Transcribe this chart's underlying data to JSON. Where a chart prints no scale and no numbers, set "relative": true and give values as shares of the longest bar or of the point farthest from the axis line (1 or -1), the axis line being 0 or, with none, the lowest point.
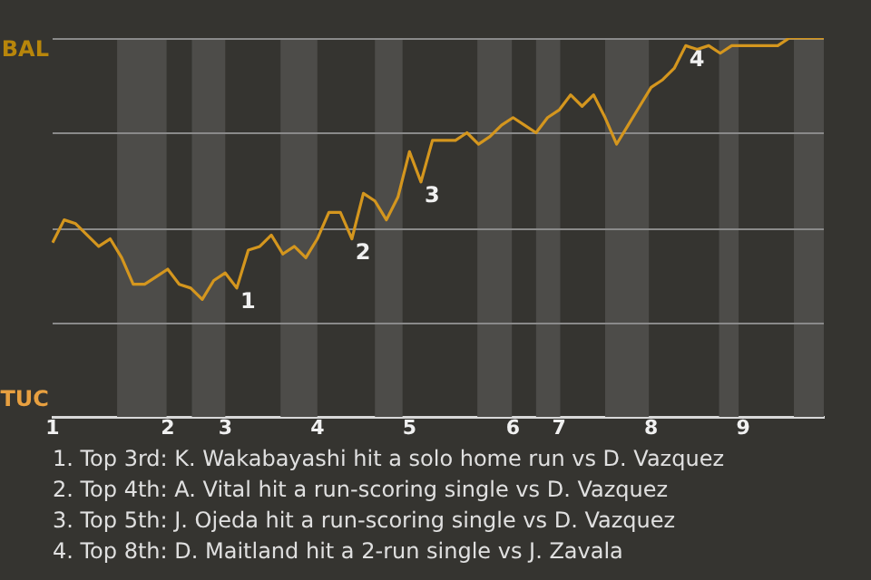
{
  "chart_data": {
    "type": "line",
    "relative": true,
    "categories": [
      "1",
      null,
      null,
      null,
      null,
      null,
      null,
      null,
      null,
      null,
      "2",
      null,
      null,
      null,
      null,
      "3",
      null,
      null,
      null,
      null,
      null,
      null,
      null,
      "4",
      null,
      null,
      null,
      null,
      null,
      null,
      null,
      "5",
      null,
      null,
      null,
      null,
      null,
      null,
      null,
      null,
      "6",
      null,
      null,
      null,
      "7",
      null,
      null,
      null,
      null,
      null,
      null,
      null,
      "8",
      null,
      null,
      null,
      null,
      null,
      null,
      null,
      "9",
      null,
      null,
      null,
      null,
      null,
      null,
      null
    ],
    "series": [
      {
        "color": "#d4961e",
        "values": [
          0.46,
          0.52,
          0.51,
          0.48,
          0.45,
          0.47,
          0.42,
          0.35,
          0.35,
          0.37,
          0.39,
          0.35,
          0.34,
          0.31,
          0.36,
          0.38,
          0.34,
          0.44,
          0.45,
          0.48,
          0.43,
          0.45,
          0.42,
          0.47,
          0.54,
          0.54,
          0.47,
          0.59,
          0.57,
          0.52,
          0.58,
          0.7,
          0.62,
          0.73,
          0.73,
          0.73,
          0.75,
          0.72,
          0.74,
          0.77,
          0.79,
          0.77,
          0.75,
          0.79,
          0.81,
          0.85,
          0.82,
          0.85,
          0.79,
          0.72,
          0.77,
          0.82,
          0.87,
          0.89,
          0.92,
          0.98,
          0.97,
          0.98,
          0.96,
          0.98,
          0.98,
          0.98,
          0.98,
          0.98,
          1.0,
          1.0,
          1.0,
          1.0
        ]
      }
    ],
    "grid": "y",
    "marker": "none",
    "line_style": "solid",
    "legend": false,
    "annotations": [
      "BAL",
      "TUC",
      "1",
      "2",
      "3",
      "4",
      "1. Top 3rd: K. Wakabayashi hit a solo home run vs D. Vazquez",
      "2. Top 4th: A. Vital hit a run-scoring single vs D. Vazquez",
      "3. Top 5th: J. Ojeda hit a run-scoring single vs D. Vazquez",
      "4. Top 8th: D. Maitland hit a 2-run single vs J. Zavala"
    ]
  }
}
